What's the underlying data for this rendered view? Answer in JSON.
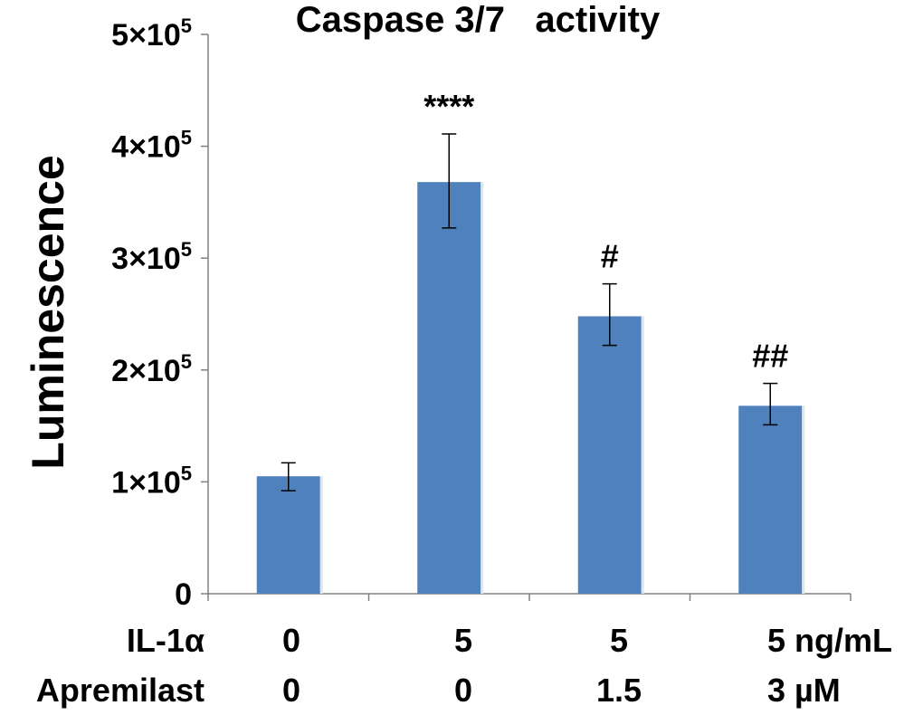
{
  "chart_data": {
    "type": "bar",
    "title": "Caspase 3/7   activity",
    "xlabel": "",
    "ylabel": "Luminescence",
    "ylim": [
      0,
      500000
    ],
    "grid": false,
    "y_ticks": [
      {
        "value": 0,
        "mantissa": "0",
        "exponent": ""
      },
      {
        "value": 100000,
        "mantissa": "1×10",
        "exponent": "5"
      },
      {
        "value": 200000,
        "mantissa": "2×10",
        "exponent": "5"
      },
      {
        "value": 300000,
        "mantissa": "3×10",
        "exponent": "5"
      },
      {
        "value": 400000,
        "mantissa": "4×10",
        "exponent": "5"
      },
      {
        "value": 500000,
        "mantissa": "5×10",
        "exponent": "5"
      }
    ],
    "categories": [
      "IL-1α 0 / Apremilast 0",
      "IL-1α 5 / Apremilast 0",
      "IL-1α 5 / Apremilast 1.5",
      "IL-1α 5 ng/mL / Apremilast 3 µM"
    ],
    "values": [
      105000,
      368000,
      248000,
      168000
    ],
    "error_low": [
      92000,
      327000,
      222000,
      151000
    ],
    "error_high": [
      117000,
      411000,
      277000,
      188000
    ],
    "annotations": [
      "",
      "****",
      "#",
      "##"
    ],
    "color": "#4f81bd",
    "treatment_rows": [
      {
        "label": "IL-1α",
        "values": [
          "0",
          "5",
          "5",
          "5 ng/mL"
        ]
      },
      {
        "label": "Apremilast",
        "values": [
          "0",
          "0",
          "1.5",
          "3 µM"
        ]
      }
    ]
  }
}
